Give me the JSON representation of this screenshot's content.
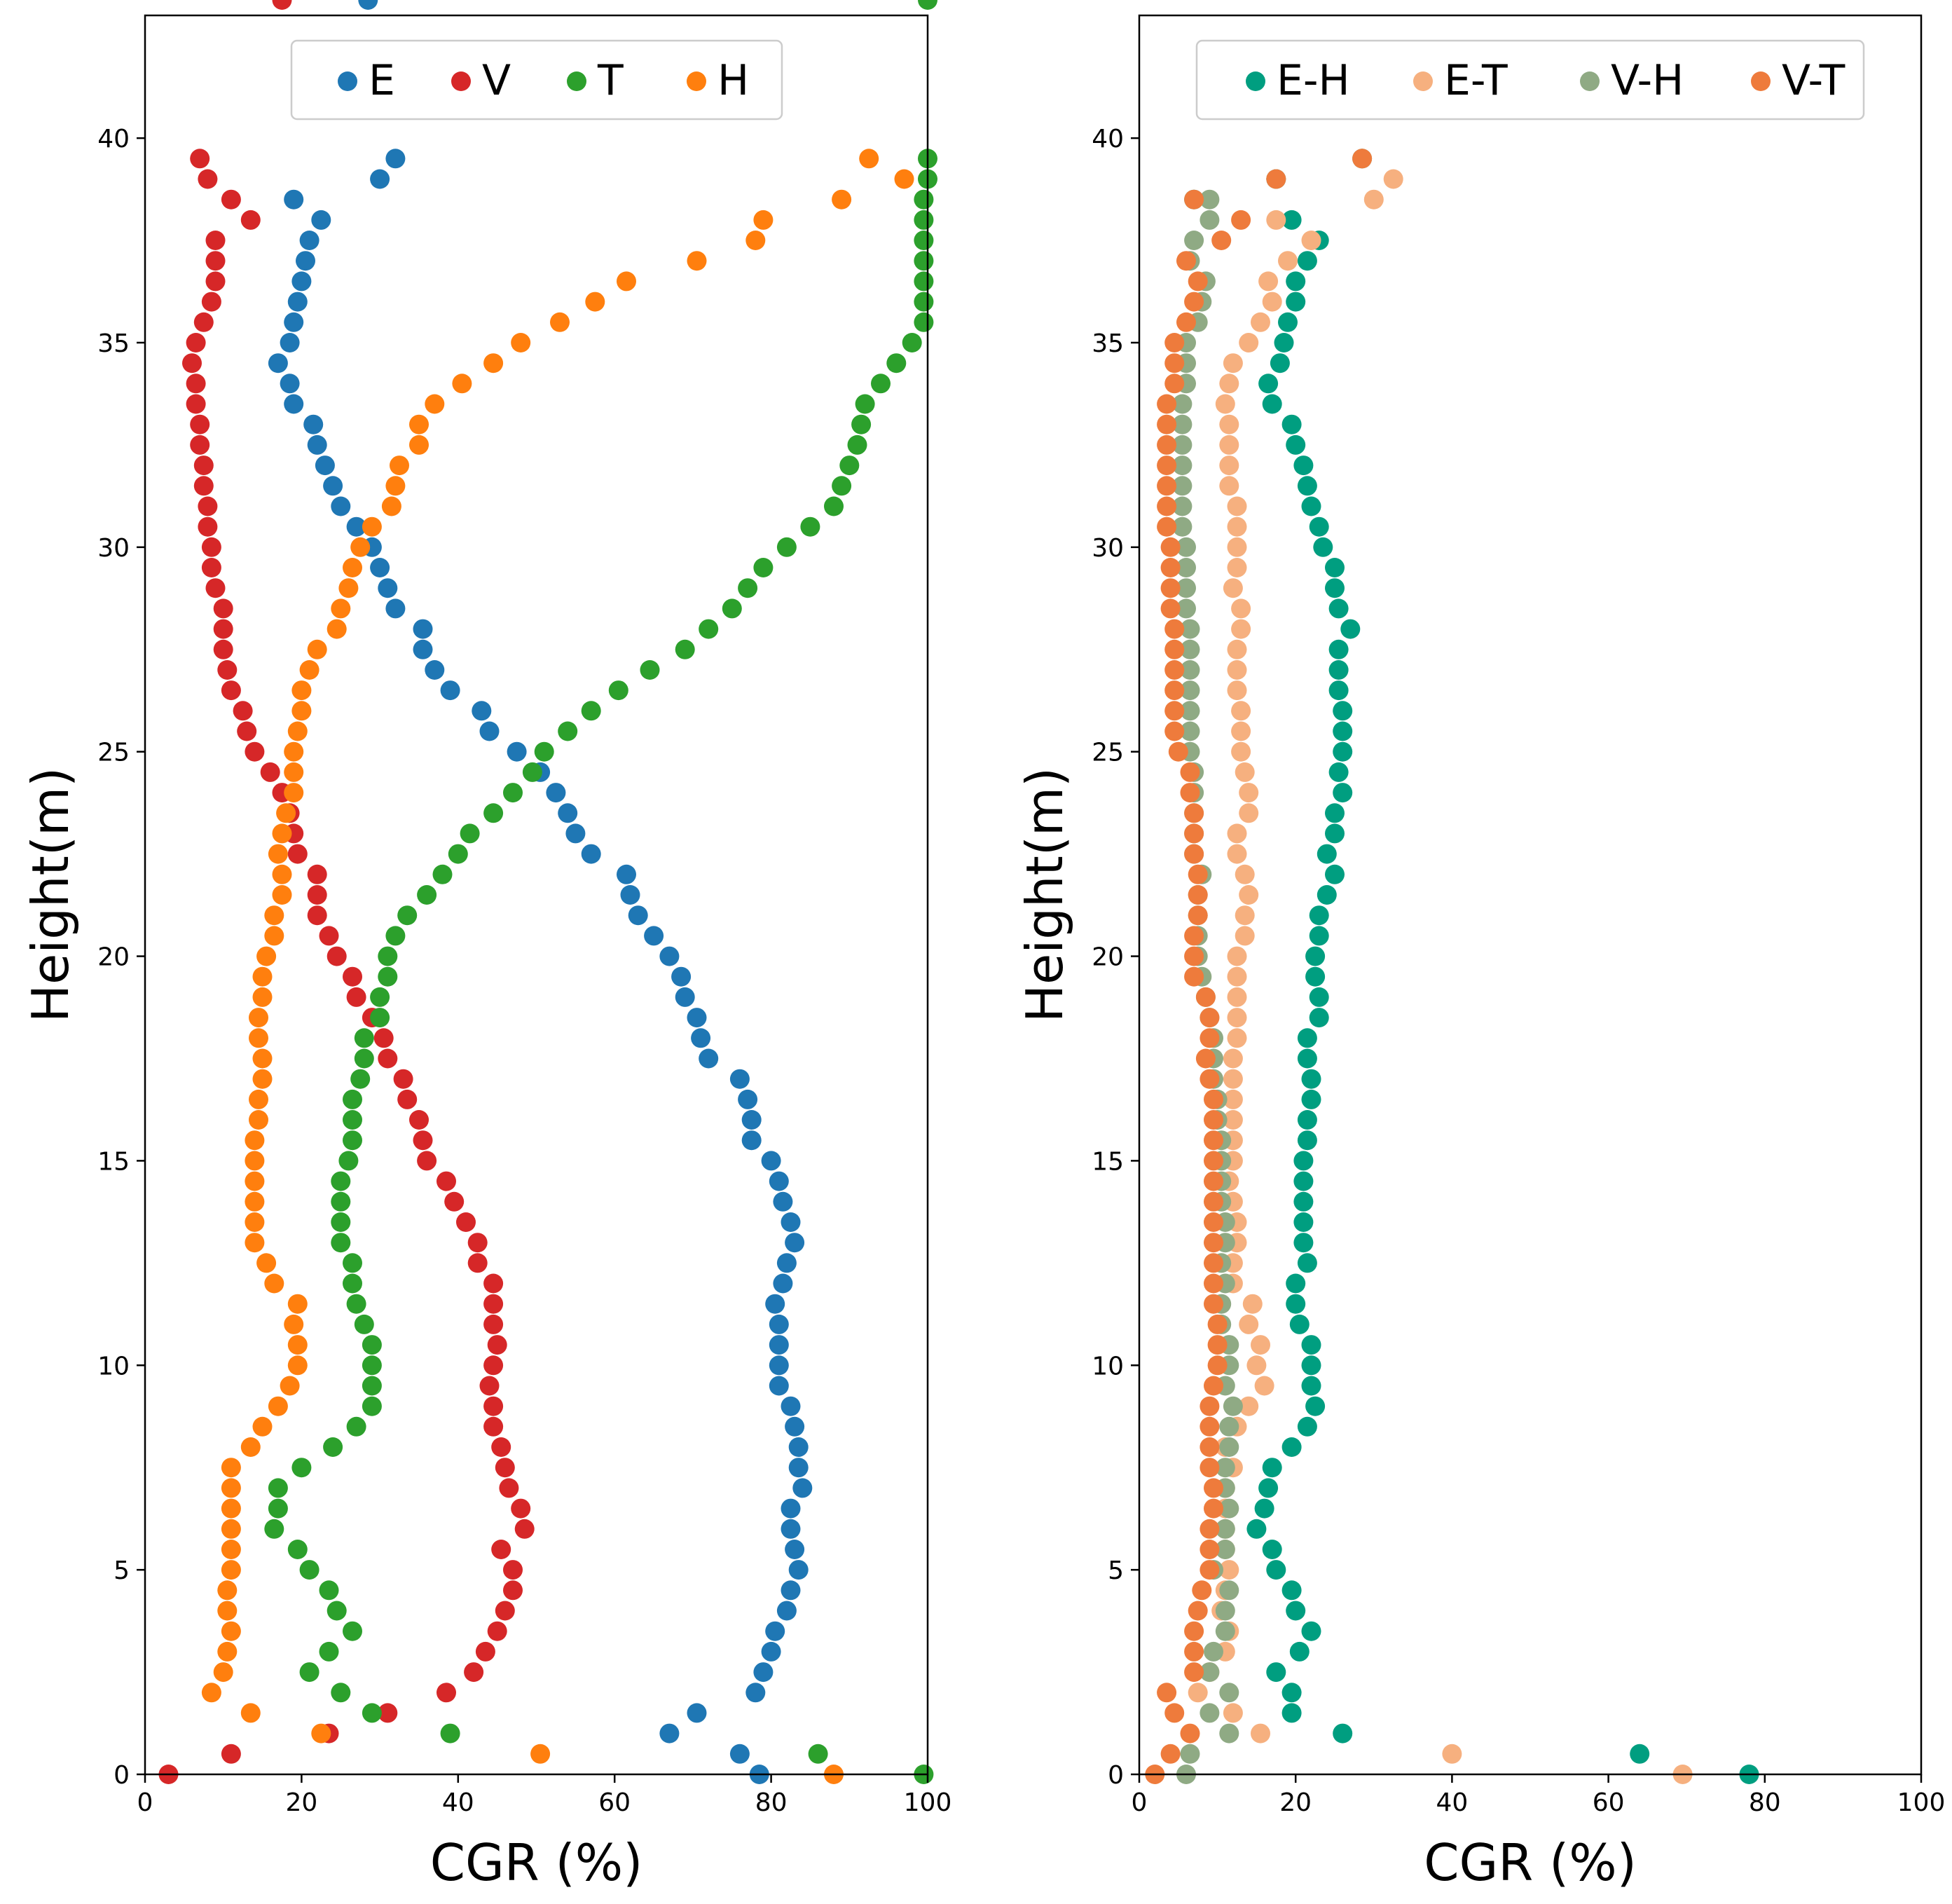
{
  "chart_data": [
    {
      "type": "scatter",
      "title": "",
      "xlabel": "CGR (%)",
      "ylabel": "Height(m)",
      "xlim": [
        0,
        100
      ],
      "ylim": [
        0,
        43
      ],
      "xticks": [
        0,
        20,
        40,
        60,
        80,
        100
      ],
      "yticks": [
        0,
        5,
        10,
        15,
        20,
        25,
        30,
        35,
        40
      ],
      "xtick_labels": [
        "0",
        "20",
        "40",
        "60",
        "80",
        "100"
      ],
      "ytick_labels": [
        "0",
        "5",
        "10",
        "15",
        "20",
        "25",
        "30",
        "35",
        "40"
      ],
      "legend_position": "top-center",
      "y": [
        0,
        0.5,
        1,
        1.5,
        2,
        2.5,
        3,
        3.5,
        4,
        4.5,
        5,
        5.5,
        6,
        6.5,
        7,
        7.5,
        8,
        8.5,
        9,
        9.5,
        10,
        10.5,
        11,
        11.5,
        12,
        12.5,
        13,
        13.5,
        14,
        14.5,
        15,
        15.5,
        16,
        16.5,
        17,
        17.5,
        18,
        18.5,
        19,
        19.5,
        20,
        20.5,
        21,
        21.5,
        22,
        22.5,
        23,
        23.5,
        24,
        24.5,
        25,
        25.5,
        26,
        26.5,
        27,
        27.5,
        28,
        28.5,
        29,
        29.5,
        30,
        30.5,
        31,
        31.5,
        32,
        32.5,
        33,
        33.5,
        34,
        34.5,
        35,
        35.5,
        36,
        36.5,
        37,
        37.5,
        38,
        38.5,
        39,
        39.5
      ],
      "series": [
        {
          "name": "E",
          "color": "#1f77b4",
          "x": [
            78.5,
            76,
            67,
            70.5,
            78,
            79,
            80,
            80.5,
            82,
            82.5,
            83.5,
            83,
            82.5,
            82.5,
            84,
            83.5,
            83.5,
            83,
            82.5,
            81,
            81,
            81,
            81,
            80.5,
            81.5,
            82,
            83,
            82.5,
            81.5,
            81,
            80,
            77.5,
            77.5,
            77,
            76,
            72,
            71,
            70.5,
            69,
            68.5,
            67,
            65,
            63,
            62,
            61.5,
            57,
            55,
            54,
            52.5,
            50.5,
            47.5,
            44,
            43,
            39,
            37,
            35.5,
            35.5,
            32,
            31,
            30,
            29,
            27,
            25,
            24,
            23,
            22,
            21.5,
            19,
            18.5,
            17,
            18.5,
            19,
            19.5,
            20,
            20.5,
            21,
            22.5,
            19,
            30,
            32,
            28.5
          ]
        },
        {
          "name": "V",
          "color": "#d62728",
          "x": [
            3,
            11,
            23.5,
            31,
            38.5,
            42,
            43.5,
            45,
            46,
            47,
            47,
            45.5,
            48.5,
            48,
            46.5,
            46,
            45.5,
            44.5,
            44.5,
            44,
            44.5,
            45,
            44.5,
            44.5,
            44.5,
            42.5,
            42.5,
            41,
            39.5,
            38.5,
            36,
            35.5,
            35,
            33.5,
            33,
            31,
            30.5,
            29,
            27,
            26.5,
            24.5,
            23.5,
            22,
            22,
            22,
            19.5,
            19,
            18.5,
            17.5,
            16,
            14,
            13,
            12.5,
            11,
            10.5,
            10,
            10,
            10,
            9,
            8.5,
            8.5,
            8,
            8,
            7.5,
            7.5,
            7,
            7,
            6.5,
            6.5,
            6,
            6.5,
            7.5,
            8.5,
            9,
            9,
            9,
            13.5,
            11,
            8,
            7,
            17.5
          ]
        },
        {
          "name": "T",
          "color": "#2ca02c",
          "x": [
            99.5,
            86,
            39,
            29,
            25,
            21,
            23.5,
            26.5,
            24.5,
            23.5,
            21,
            19.5,
            16.5,
            17,
            17,
            20,
            24,
            27,
            29,
            29,
            29,
            29,
            28,
            27,
            26.5,
            26.5,
            25,
            25,
            25,
            25,
            26,
            26.5,
            26.5,
            26.5,
            27.5,
            28,
            28,
            30,
            30,
            31,
            31,
            32,
            33.5,
            36,
            38,
            40,
            41.5,
            44.5,
            47,
            49.5,
            51,
            54,
            57,
            60.5,
            64.5,
            69,
            72,
            75,
            77,
            79,
            82,
            85,
            88,
            89,
            90,
            91,
            91.5,
            92,
            94,
            96,
            98,
            99.5,
            99.5,
            99.5,
            99.5,
            99.5,
            99.5,
            99.5,
            100,
            100,
            100
          ]
        },
        {
          "name": "H",
          "color": "#ff7f0e",
          "x": [
            88,
            50.5,
            22.5,
            13.5,
            8.5,
            10,
            10.5,
            11,
            10.5,
            10.5,
            11,
            11,
            11,
            11,
            11,
            11,
            13.5,
            15,
            17,
            18.5,
            19.5,
            19.5,
            19,
            19.5,
            16.5,
            15.5,
            14,
            14,
            14,
            14,
            14,
            14,
            14.5,
            14.5,
            15,
            15,
            14.5,
            14.5,
            15,
            15,
            15.5,
            16.5,
            16.5,
            17.5,
            17.5,
            17,
            17.5,
            18,
            19,
            19,
            19,
            19.5,
            20,
            20,
            21,
            22,
            24.5,
            25,
            26,
            26.5,
            27.5,
            29,
            31.5,
            32,
            32.5,
            35,
            35,
            37,
            40.5,
            44.5,
            48,
            53,
            57.5,
            61.5,
            70.5,
            78,
            79,
            89,
            97,
            92.5
          ]
        }
      ]
    },
    {
      "type": "scatter",
      "title": "",
      "xlabel": "CGR (%)",
      "ylabel": "Height(m)",
      "xlim": [
        0,
        100
      ],
      "ylim": [
        0,
        43
      ],
      "xticks": [
        0,
        20,
        40,
        60,
        80,
        100
      ],
      "yticks": [
        0,
        5,
        10,
        15,
        20,
        25,
        30,
        35,
        40
      ],
      "xtick_labels": [
        "0",
        "20",
        "40",
        "60",
        "80",
        "100"
      ],
      "ytick_labels": [
        "0",
        "5",
        "10",
        "15",
        "20",
        "25",
        "30",
        "35",
        "40"
      ],
      "legend_position": "top-center",
      "y": [
        0,
        0.5,
        1,
        1.5,
        2,
        2.5,
        3,
        3.5,
        4,
        4.5,
        5,
        5.5,
        6,
        6.5,
        7,
        7.5,
        8,
        8.5,
        9,
        9.5,
        10,
        10.5,
        11,
        11.5,
        12,
        12.5,
        13,
        13.5,
        14,
        14.5,
        15,
        15.5,
        16,
        16.5,
        17,
        17.5,
        18,
        18.5,
        19,
        19.5,
        20,
        20.5,
        21,
        21.5,
        22,
        22.5,
        23,
        23.5,
        24,
        24.5,
        25,
        25.5,
        26,
        26.5,
        27,
        27.5,
        28,
        28.5,
        29,
        29.5,
        30,
        30.5,
        31,
        31.5,
        32,
        32.5,
        33,
        33.5,
        34,
        34.5,
        35,
        35.5,
        36,
        36.5,
        37,
        37.5,
        38,
        38.5,
        39,
        39.5
      ],
      "series": [
        {
          "name": "E-H",
          "color": "#009e80",
          "x": [
            78,
            64,
            26,
            19.5,
            19.5,
            17.5,
            20.5,
            22,
            20,
            19.5,
            17.5,
            17,
            15,
            16,
            16.5,
            17,
            19.5,
            21.5,
            22.5,
            22,
            22,
            22,
            20.5,
            20,
            20,
            21.5,
            21,
            21,
            21,
            21,
            21,
            21.5,
            21.5,
            22,
            22,
            21.5,
            21.5,
            23,
            23,
            22.5,
            22.5,
            23,
            23,
            24,
            25,
            24,
            25,
            25,
            26,
            25.5,
            26,
            26,
            26,
            25.5,
            25.5,
            25.5,
            27,
            25.5,
            25,
            25,
            23.5,
            23,
            22,
            21.5,
            21,
            20,
            19.5,
            17,
            16.5,
            18,
            18.5,
            19,
            20,
            20,
            21.5,
            23,
            19.5,
            7,
            17.5,
            28.5
          ]
        },
        {
          "name": "E-T",
          "color": "#f6b07f",
          "x": [
            69.5,
            40,
            15.5,
            12,
            7.5,
            9,
            11,
            11.5,
            10.5,
            11,
            11.5,
            11,
            11,
            11,
            11,
            12,
            11,
            12.5,
            14,
            16,
            15,
            15.5,
            14,
            14.5,
            12,
            12,
            12.5,
            12.5,
            12,
            11.5,
            12,
            12,
            12,
            12,
            12,
            12,
            12.5,
            12.5,
            12.5,
            12.5,
            12.5,
            13.5,
            13.5,
            14,
            13.5,
            12.5,
            12.5,
            14,
            14,
            13.5,
            13,
            13,
            13,
            12.5,
            12.5,
            12.5,
            13,
            13,
            12,
            12.5,
            12.5,
            12.5,
            12.5,
            11.5,
            11.5,
            11.5,
            11.5,
            11,
            11.5,
            12,
            14,
            15.5,
            17,
            16.5,
            19,
            22,
            17.5,
            30,
            32.5,
            28.5
          ]
        },
        {
          "name": "V-H",
          "color": "#8faa84",
          "x": [
            6,
            6.5,
            11.5,
            9,
            11.5,
            9,
            9.5,
            11,
            11,
            11.5,
            9.5,
            11,
            11,
            11.5,
            11,
            11,
            11.5,
            11.5,
            12,
            11,
            11.5,
            11.5,
            10.5,
            10.5,
            11,
            10.5,
            11,
            11,
            10.5,
            10.5,
            10.5,
            10.5,
            10,
            10,
            9.5,
            9.5,
            9.5,
            9,
            8.5,
            8,
            7.5,
            7.5,
            7.5,
            7.5,
            8,
            7,
            7,
            7,
            7,
            7,
            6.5,
            6.5,
            6.5,
            6.5,
            6.5,
            6.5,
            6.5,
            6,
            6,
            6,
            6,
            5.5,
            5.5,
            5.5,
            5.5,
            5.5,
            5.5,
            5.5,
            6,
            6,
            6,
            7.5,
            8,
            8.5,
            6.5,
            7,
            9,
            9,
            17.5,
            28.5
          ]
        },
        {
          "name": "V-T",
          "color": "#ee7b3c",
          "x": [
            2,
            4,
            6.5,
            4.5,
            3.5,
            7,
            7,
            7,
            7.5,
            8,
            9,
            9,
            9,
            9.5,
            9.5,
            9,
            9,
            9,
            9,
            9.5,
            10,
            10,
            10,
            9.5,
            9.5,
            9.5,
            9.5,
            9.5,
            9.5,
            9.5,
            9.5,
            9.5,
            9.5,
            9.5,
            9,
            8.5,
            9,
            9,
            8.5,
            7,
            7,
            7,
            7.5,
            7.5,
            7.5,
            7,
            7,
            7,
            6.5,
            6.5,
            5,
            4.5,
            4.5,
            4.5,
            4.5,
            4.5,
            4.5,
            4,
            4,
            4,
            4,
            3.5,
            3.5,
            3.5,
            3.5,
            3.5,
            3.5,
            3.5,
            4.5,
            4.5,
            4.5,
            6,
            7,
            7.5,
            6,
            10.5,
            13,
            7,
            17.5,
            28.5
          ]
        }
      ]
    }
  ]
}
